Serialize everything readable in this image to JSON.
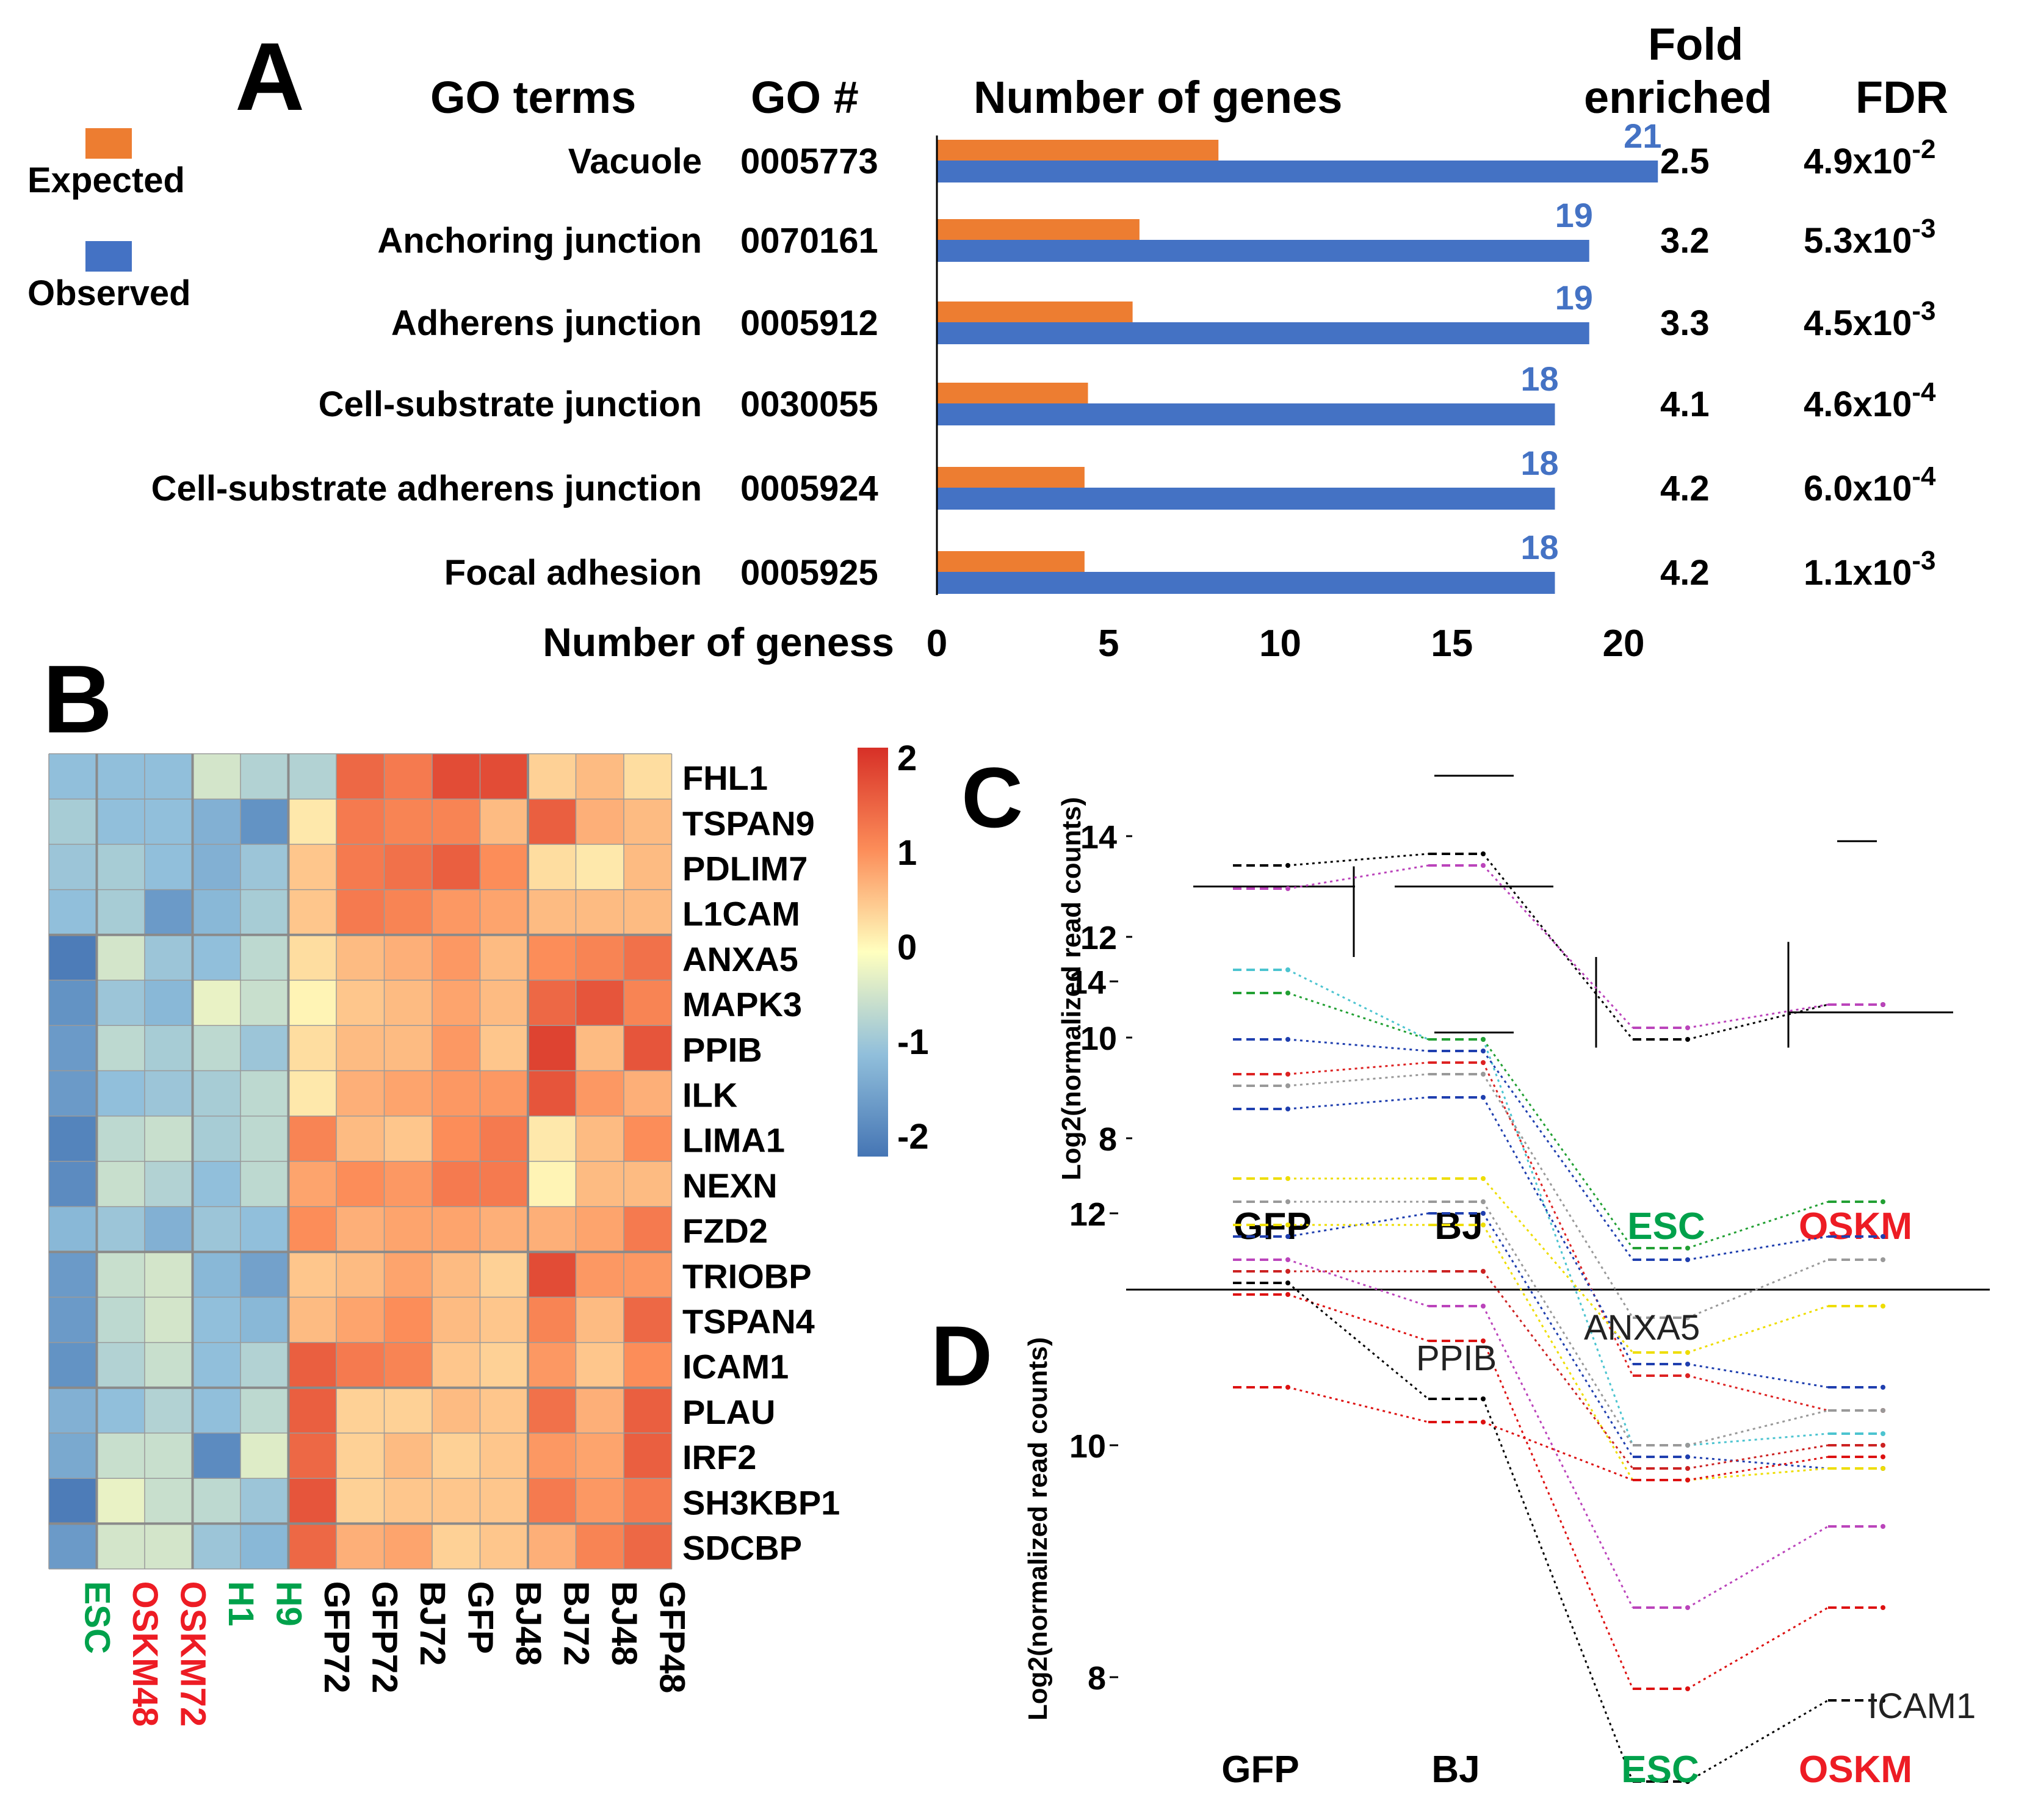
{
  "panel_labels": {
    "a": "A",
    "b": "B",
    "c": "C",
    "d": "D"
  },
  "colors": {
    "expected": "#ED7D31",
    "observed": "#4472C4",
    "label_blue": "#4472C4",
    "green": "#00A14B",
    "red": "#ED1C24",
    "black": "#000000"
  },
  "chart_data": [
    {
      "type": "bar",
      "panel": "A",
      "title": "",
      "header": {
        "go_terms": "GO terms",
        "go_num": "GO #",
        "num_genes": "Number of genes",
        "fold_line1": "Fold",
        "fold_line2": "enriched",
        "fdr": "FDR"
      },
      "legend": [
        {
          "name": "Expected",
          "color": "#ED7D31"
        },
        {
          "name": "Observed",
          "color": "#4472C4"
        }
      ],
      "xlabel": "Number of geness",
      "xlim": [
        0,
        20
      ],
      "xticks": [
        "0",
        "5",
        "10",
        "15",
        "20"
      ],
      "rows": [
        {
          "term": "Vacuole",
          "go": "0005773",
          "expected": 8.2,
          "observed": 21,
          "label": "21",
          "fold": "2.5",
          "fdr_base": "4.9x10",
          "fdr_exp": "-2"
        },
        {
          "term": "Anchoring junction",
          "go": "0070161",
          "expected": 5.9,
          "observed": 19,
          "label": "19",
          "fold": "3.2",
          "fdr_base": "5.3x10",
          "fdr_exp": "-3"
        },
        {
          "term": "Adherens junction",
          "go": "0005912",
          "expected": 5.7,
          "observed": 19,
          "label": "19",
          "fold": "3.3",
          "fdr_base": "4.5x10",
          "fdr_exp": "-3"
        },
        {
          "term": "Cell-substrate junction",
          "go": "0030055",
          "expected": 4.4,
          "observed": 18,
          "label": "18",
          "fold": "4.1",
          "fdr_base": "4.6x10",
          "fdr_exp": "-4"
        },
        {
          "term": "Cell-substrate adherens junction",
          "go": "0005924",
          "expected": 4.3,
          "observed": 18,
          "label": "18",
          "fold": "4.2",
          "fdr_base": "6.0x10",
          "fdr_exp": "-4"
        },
        {
          "term": "Focal adhesion",
          "go": "0005925",
          "expected": 4.3,
          "observed": 18,
          "label": "18",
          "fold": "4.2",
          "fdr_base": "1.1x10",
          "fdr_exp": "-3"
        }
      ]
    },
    {
      "type": "heatmap",
      "panel": "B",
      "rows": [
        "FHL1",
        "TSPAN9",
        "PDLIM7",
        "L1CAM",
        "ANXA5",
        "MAPK3",
        "PPIB",
        "ILK",
        "LIMA1",
        "NEXN",
        "FZD2",
        "TRIOBP",
        "TSPAN4",
        "ICAM1",
        "PLAU",
        "IRF2",
        "SH3KBP1",
        "SDCBP"
      ],
      "columns": [
        {
          "name": "ESC",
          "color": "#00A14B"
        },
        {
          "name": "OSKM48",
          "color": "#ED1C24"
        },
        {
          "name": "OSKM72",
          "color": "#ED1C24"
        },
        {
          "name": "H1",
          "color": "#00A14B"
        },
        {
          "name": "H9",
          "color": "#00A14B"
        },
        {
          "name": "GFP72",
          "color": "#000000"
        },
        {
          "name": "GFP72",
          "color": "#000000"
        },
        {
          "name": "BJ72",
          "color": "#000000"
        },
        {
          "name": "GFP",
          "color": "#000000"
        },
        {
          "name": "BJ48",
          "color": "#000000"
        },
        {
          "name": "BJ72",
          "color": "#000000"
        },
        {
          "name": "BJ48",
          "color": "#000000"
        },
        {
          "name": "GFP48",
          "color": "#000000"
        }
      ],
      "values": [
        [
          -1.0,
          -1.0,
          -1.0,
          -0.4,
          -0.7,
          -0.7,
          1.4,
          1.2,
          1.7,
          1.7,
          0.4,
          0.6,
          0.3
        ],
        [
          -0.8,
          -1.0,
          -1.0,
          -1.2,
          -1.6,
          0.2,
          1.2,
          1.1,
          1.1,
          0.6,
          1.5,
          0.7,
          0.6
        ],
        [
          -0.9,
          -0.8,
          -1.0,
          -1.2,
          -0.9,
          0.5,
          1.2,
          1.3,
          1.5,
          1.0,
          0.3,
          0.2,
          0.6
        ],
        [
          -1.0,
          -0.8,
          -1.5,
          -1.1,
          -0.8,
          0.5,
          1.2,
          1.1,
          0.9,
          0.8,
          0.6,
          0.6,
          0.6
        ],
        [
          -1.9,
          -0.4,
          -0.9,
          -1.0,
          -0.6,
          0.3,
          0.6,
          0.7,
          0.9,
          0.6,
          1.0,
          1.1,
          1.3
        ],
        [
          -1.6,
          -0.9,
          -1.1,
          -0.2,
          -0.5,
          0.1,
          0.5,
          0.6,
          0.8,
          0.6,
          1.4,
          1.6,
          1.1
        ],
        [
          -1.5,
          -0.6,
          -0.8,
          -0.6,
          -0.9,
          0.3,
          0.6,
          0.6,
          0.9,
          0.5,
          1.8,
          0.6,
          1.6
        ],
        [
          -1.5,
          -1.0,
          -0.9,
          -0.8,
          -0.6,
          0.2,
          0.7,
          0.8,
          0.9,
          0.9,
          1.6,
          0.9,
          0.7
        ],
        [
          -1.8,
          -0.6,
          -0.5,
          -0.8,
          -0.6,
          1.1,
          0.6,
          0.5,
          1.0,
          1.2,
          0.2,
          0.6,
          1.0
        ],
        [
          -1.7,
          -0.5,
          -0.7,
          -1.0,
          -0.6,
          0.8,
          1.0,
          0.9,
          1.2,
          1.2,
          0.1,
          0.6,
          0.6
        ],
        [
          -1.1,
          -0.9,
          -1.2,
          -0.9,
          -1.0,
          1.0,
          0.7,
          0.8,
          0.8,
          0.7,
          0.7,
          0.8,
          1.2
        ],
        [
          -1.5,
          -0.5,
          -0.4,
          -1.1,
          -1.4,
          0.5,
          0.6,
          0.8,
          0.6,
          0.4,
          1.7,
          0.9,
          0.9
        ],
        [
          -1.5,
          -0.6,
          -0.4,
          -1.0,
          -1.1,
          0.6,
          0.8,
          1.0,
          0.6,
          0.5,
          1.1,
          0.6,
          1.4
        ],
        [
          -1.6,
          -0.7,
          -0.5,
          -1.0,
          -0.7,
          1.5,
          1.2,
          1.1,
          0.5,
          0.4,
          0.9,
          0.5,
          1.0
        ],
        [
          -1.2,
          -1.0,
          -0.7,
          -1.0,
          -0.6,
          1.5,
          0.4,
          0.4,
          0.6,
          0.5,
          1.3,
          0.7,
          1.5
        ],
        [
          -1.3,
          -0.5,
          -0.5,
          -1.7,
          -0.3,
          1.4,
          0.4,
          0.6,
          0.4,
          0.5,
          0.9,
          0.8,
          1.5
        ],
        [
          -1.9,
          -0.2,
          -0.5,
          -0.6,
          -0.9,
          1.6,
          0.4,
          0.5,
          0.5,
          0.5,
          1.2,
          0.9,
          1.2
        ],
        [
          -1.5,
          -0.4,
          -0.4,
          -0.9,
          -1.1,
          1.4,
          0.7,
          0.8,
          0.4,
          0.5,
          0.7,
          1.1,
          1.4
        ]
      ],
      "colorbar": {
        "range": [
          -2,
          2
        ],
        "ticks": [
          "2",
          "1",
          "0",
          "-1",
          "-2"
        ]
      }
    },
    {
      "type": "line",
      "panel": "C",
      "ylabel": "Log2(normalized read counts)",
      "ylim": [
        7.5,
        15.5
      ],
      "yticks": [
        "8",
        "10",
        "12",
        "14"
      ],
      "groups": [
        {
          "name": "GFP",
          "color": "#000000"
        },
        {
          "name": "BJ",
          "color": "#000000"
        },
        {
          "name": "ESC",
          "color": "#00A14B"
        },
        {
          "name": "OSKM",
          "color": "#ED1C24"
        }
      ]
    },
    {
      "type": "line",
      "panel": "D",
      "ylabel": "Log2(normalized read counts)",
      "ylim": [
        7,
        15.5
      ],
      "yticks": [
        "8",
        "10",
        "12",
        "14"
      ],
      "groups": [
        {
          "name": "GFP",
          "color": "#000000"
        },
        {
          "name": "BJ",
          "color": "#000000"
        },
        {
          "name": "ESC",
          "color": "#00A14B"
        },
        {
          "name": "OSKM",
          "color": "#ED1C24"
        }
      ],
      "annotations": [
        "ANXA5",
        "PPIB",
        "ICAM1"
      ],
      "series": [
        {
          "color": "#000000",
          "values": [
            15.0,
            15.1,
            13.5,
            13.8
          ]
        },
        {
          "color": "#BB44BB",
          "values": [
            14.8,
            15.0,
            13.6,
            13.8
          ]
        },
        {
          "color": "#4CC4D0",
          "values": [
            14.1,
            13.5,
            10.0,
            10.1
          ]
        },
        {
          "color": "#22A033",
          "values": [
            13.9,
            13.5,
            11.7,
            12.1
          ]
        },
        {
          "color": "#1F3FAF",
          "values": [
            13.5,
            13.4,
            11.6,
            11.8
          ]
        },
        {
          "color": "#DD2222",
          "values": [
            13.2,
            13.3,
            10.6,
            10.3
          ]
        },
        {
          "color": "#999999",
          "values": [
            13.1,
            13.2,
            11.1,
            11.6
          ]
        },
        {
          "color": "#1F3FAF",
          "values": [
            12.9,
            13.0,
            10.7,
            10.5
          ]
        },
        {
          "color": "#EEDD00",
          "values": [
            12.3,
            12.3,
            10.8,
            11.2
          ]
        },
        {
          "color": "#1F3FAF",
          "values": [
            11.8,
            12.0,
            9.9,
            9.8
          ]
        },
        {
          "color": "#999999",
          "values": [
            12.1,
            12.1,
            10.0,
            10.3
          ]
        },
        {
          "color": "#EEDD00",
          "values": [
            11.9,
            11.9,
            9.7,
            9.8
          ]
        },
        {
          "color": "#CC2222",
          "values": [
            11.5,
            11.5,
            9.8,
            10.0
          ]
        },
        {
          "color": "#BB44BB",
          "values": [
            11.6,
            11.2,
            8.6,
            9.3
          ]
        },
        {
          "color": "#DD1111",
          "values": [
            11.3,
            10.9,
            7.9,
            8.6
          ]
        },
        {
          "color": "#000000",
          "values": [
            11.4,
            10.4,
            7.1,
            7.8
          ]
        },
        {
          "color": "#DD1111",
          "values": [
            10.5,
            10.2,
            9.7,
            9.9
          ]
        }
      ]
    }
  ]
}
